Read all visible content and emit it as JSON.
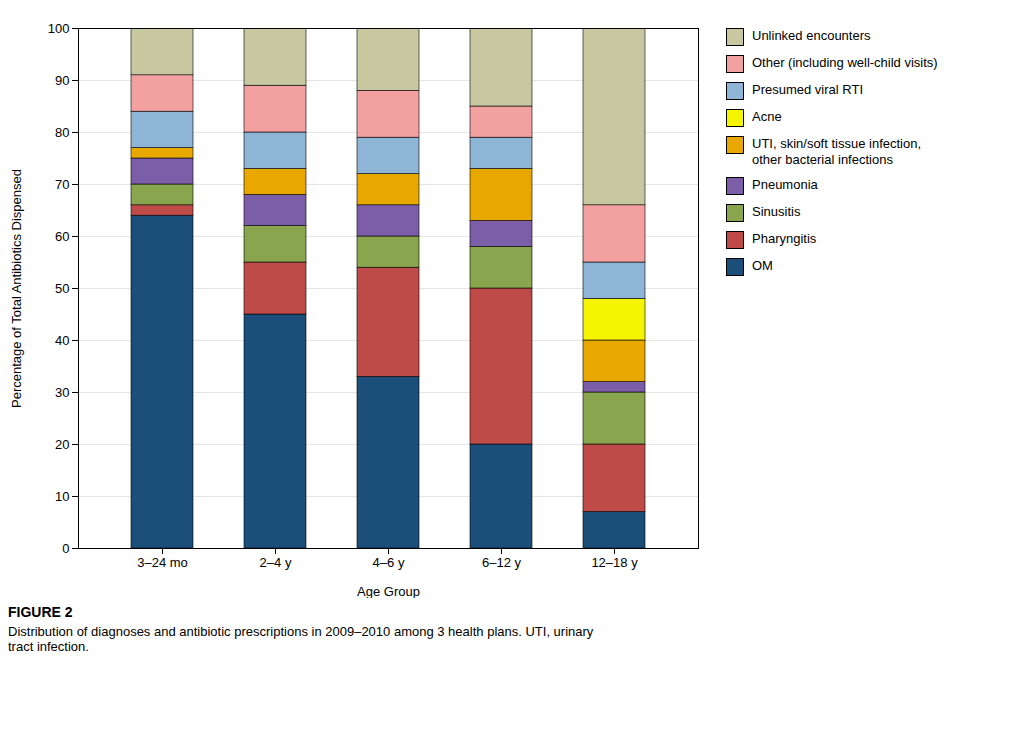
{
  "chart_data": {
    "type": "bar",
    "stacked": true,
    "categories": [
      "3–24 mo",
      "2–4 y",
      "4–6 y",
      "6–12 y",
      "12–18 y"
    ],
    "series": [
      {
        "name": "OM",
        "color": "#1b4f7a",
        "values": [
          64,
          45,
          33,
          20,
          7
        ]
      },
      {
        "name": "Pharyngitis",
        "color": "#be4b48",
        "values": [
          2,
          10,
          21,
          30,
          13
        ]
      },
      {
        "name": "Sinusitis",
        "color": "#89a54e",
        "values": [
          4,
          7,
          6,
          8,
          10
        ]
      },
      {
        "name": "Pneumonia",
        "color": "#7b5ea7",
        "values": [
          5,
          6,
          6,
          5,
          2
        ]
      },
      {
        "name": "UTI, skin/soft tissue infection,\nother bacterial infections",
        "color": "#e8a800",
        "values": [
          2,
          5,
          6,
          10,
          8
        ]
      },
      {
        "name": "Acne",
        "color": "#f5f500",
        "values": [
          0,
          0,
          0,
          0,
          8
        ]
      },
      {
        "name": "Presumed viral RTI",
        "color": "#8eb4d6",
        "values": [
          7,
          7,
          7,
          6,
          7
        ]
      },
      {
        "name": "Other (including well-child visits)",
        "color": "#f2a0a0",
        "values": [
          7,
          9,
          9,
          6,
          11
        ]
      },
      {
        "name": "Unlinked encounters",
        "color": "#c8c8a0",
        "values": [
          9,
          11,
          12,
          15,
          34
        ]
      }
    ],
    "ylabel": "Percentage of Total Antibiotics Dispensed",
    "xlabel": "Age Group",
    "ylim": [
      0,
      100
    ],
    "yticks": [
      0,
      10,
      20,
      30,
      40,
      50,
      60,
      70,
      80,
      90,
      100
    ],
    "grid": true,
    "legend": "right",
    "caption": "FIGURE 2",
    "caption_text": "Distribution of diagnoses and antibiotic prescriptions in 2009–2010 among 3 health plans. UTI, urinary\ntract infection."
  }
}
